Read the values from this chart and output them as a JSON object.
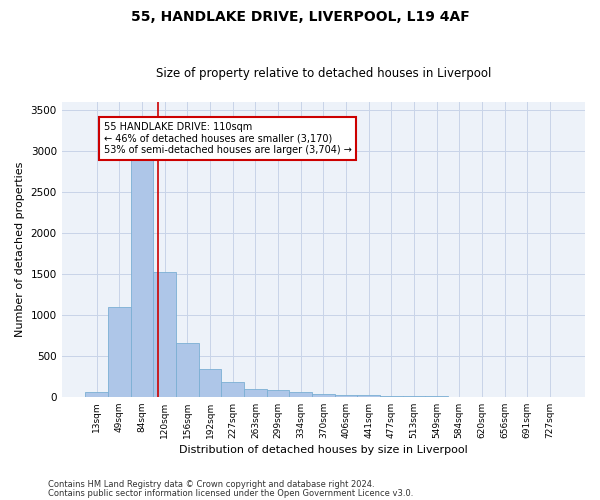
{
  "title": "55, HANDLAKE DRIVE, LIVERPOOL, L19 4AF",
  "subtitle": "Size of property relative to detached houses in Liverpool",
  "xlabel": "Distribution of detached houses by size in Liverpool",
  "ylabel": "Number of detached properties",
  "footnote1": "Contains HM Land Registry data © Crown copyright and database right 2024.",
  "footnote2": "Contains public sector information licensed under the Open Government Licence v3.0.",
  "bar_labels": [
    "13sqm",
    "49sqm",
    "84sqm",
    "120sqm",
    "156sqm",
    "192sqm",
    "227sqm",
    "263sqm",
    "299sqm",
    "334sqm",
    "370sqm",
    "406sqm",
    "441sqm",
    "477sqm",
    "513sqm",
    "549sqm",
    "584sqm",
    "620sqm",
    "656sqm",
    "691sqm",
    "727sqm"
  ],
  "bar_values": [
    55,
    1100,
    2950,
    1520,
    650,
    340,
    185,
    100,
    80,
    55,
    35,
    25,
    18,
    10,
    8,
    5,
    3,
    2,
    1,
    1,
    1
  ],
  "bar_color": "#aec6e8",
  "bar_edge_color": "#7bafd4",
  "grid_color": "#c8d4e8",
  "background_color": "#edf2f9",
  "vline_x": 2.72,
  "vline_color": "#cc0000",
  "annotation_text": "55 HANDLAKE DRIVE: 110sqm\n← 46% of detached houses are smaller (3,170)\n53% of semi-detached houses are larger (3,704) →",
  "annotation_box_color": "#cc0000",
  "ylim": [
    0,
    3600
  ],
  "yticks": [
    0,
    500,
    1000,
    1500,
    2000,
    2500,
    3000,
    3500
  ],
  "fig_width": 6.0,
  "fig_height": 5.0,
  "dpi": 100
}
